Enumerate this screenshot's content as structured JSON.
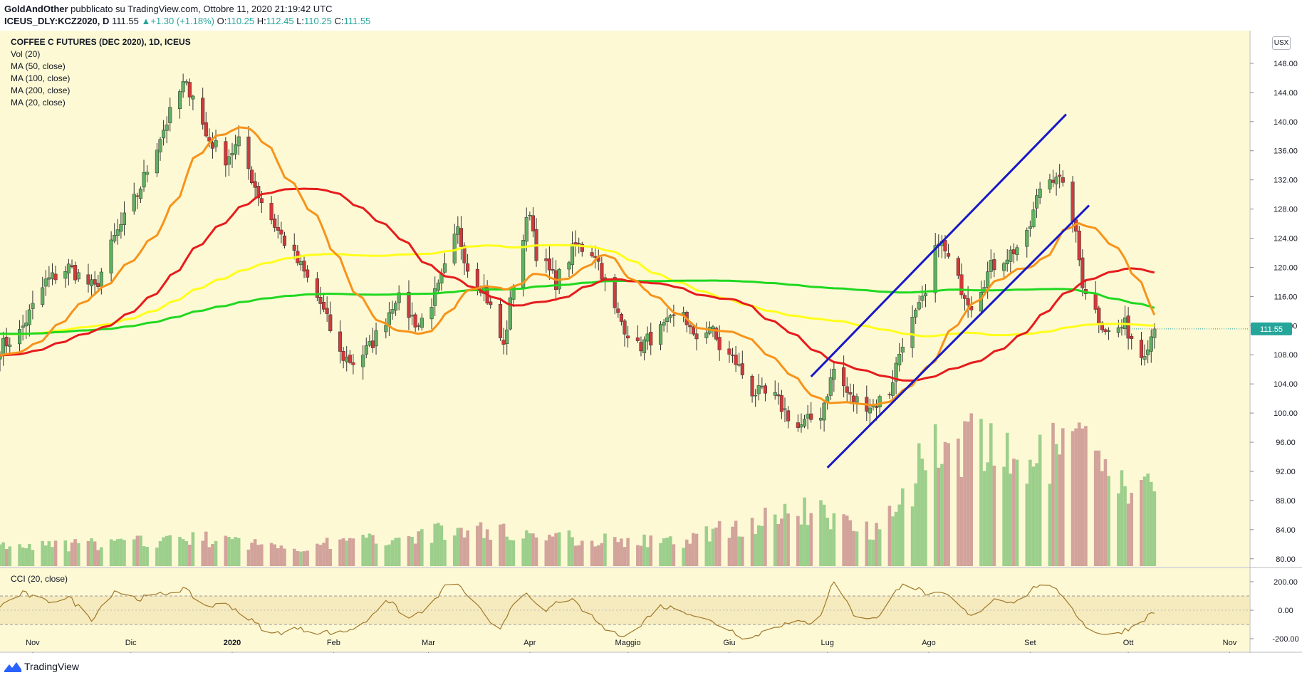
{
  "header": {
    "author": "GoldAndOther",
    "published_text": "pubblicato su TradingView.com, Ottobre 11, 2020 21:19:42 UTC",
    "symbol": "ICEUS_DLY:KCZ2020, D",
    "last": "111.55",
    "change_arrow": "▲",
    "change": "+1.30 (+1.18%)",
    "o_label": "O:",
    "o": "110.25",
    "h_label": "H:",
    "h": "112.45",
    "l_label": "L:",
    "l": "110.25",
    "c_label": "C:",
    "c": "111.55"
  },
  "legend": {
    "title": "COFFEE C FUTURES (DEC 2020), 1D, ICEUS",
    "vol": "Vol (20)",
    "ma50": "MA (50, close)",
    "ma100": "MA (100, close)",
    "ma200": "MA (200, close)",
    "ma20": "MA (20, close)",
    "cci": "CCI (20, close)"
  },
  "currency_badge": "USX",
  "price_label": "111.55",
  "footer": {
    "brand": "TradingView"
  },
  "colors": {
    "background": "#fdf9d5",
    "up": "#26a69a",
    "candle_up": "#60b060",
    "candle_down": "#d03a3a",
    "vol_up": "#9dcf8c",
    "vol_down": "#d2a39b",
    "ma20": "#f7931a",
    "ma50": "#e61c1c",
    "ma100": "#ffff1a",
    "ma200": "#20d820",
    "channel": "#1818c8",
    "cci": "#a0782a",
    "price_badge": "#26a69a"
  },
  "chart_data": {
    "type": "candlestick",
    "title": "COFFEE C FUTURES (DEC 2020), 1D, ICEUS",
    "y_ticks": [
      "80.00",
      "84.00",
      "88.00",
      "92.00",
      "96.00",
      "100.00",
      "104.00",
      "108.00",
      "112.00",
      "116.00",
      "120.00",
      "124.00",
      "128.00",
      "132.00",
      "136.00",
      "140.00",
      "144.00",
      "148.00"
    ],
    "ylim": [
      79,
      152
    ],
    "x_ticks": [
      "Nov",
      "Dic",
      "2020",
      "Feb",
      "Mar",
      "Apr",
      "Maggio",
      "Giu",
      "Lug",
      "Ago",
      "Set",
      "Ott",
      "Nov"
    ],
    "x_range": [
      "2019-10-22",
      "2020-11-07"
    ],
    "last_close": 111.55,
    "close_anchors": [
      [
        "2019-10-22",
        109
      ],
      [
        "2019-10-28",
        111
      ],
      [
        "2019-11-05",
        118
      ],
      [
        "2019-11-12",
        120
      ],
      [
        "2019-11-20",
        117
      ],
      [
        "2019-11-26",
        124
      ],
      [
        "2019-12-03",
        130
      ],
      [
        "2019-12-10",
        138
      ],
      [
        "2019-12-17",
        145
      ],
      [
        "2019-12-20",
        144
      ],
      [
        "2019-12-24",
        138
      ],
      [
        "2019-12-30",
        135
      ],
      [
        "2020-01-03",
        137
      ],
      [
        "2020-01-09",
        130
      ],
      [
        "2020-01-15",
        125
      ],
      [
        "2020-01-22",
        120
      ],
      [
        "2020-01-28",
        115
      ],
      [
        "2020-02-03",
        108
      ],
      [
        "2020-02-07",
        107
      ],
      [
        "2020-02-12",
        109
      ],
      [
        "2020-02-17",
        113
      ],
      [
        "2020-02-20",
        116
      ],
      [
        "2020-02-27",
        112
      ],
      [
        "2020-03-04",
        117
      ],
      [
        "2020-03-10",
        125
      ],
      [
        "2020-03-13",
        120
      ],
      [
        "2020-03-18",
        117
      ],
      [
        "2020-03-24",
        109
      ],
      [
        "2020-03-27",
        118
      ],
      [
        "2020-04-01",
        128
      ],
      [
        "2020-04-03",
        122
      ],
      [
        "2020-04-09",
        118
      ],
      [
        "2020-04-15",
        123
      ],
      [
        "2020-04-21",
        122
      ],
      [
        "2020-04-27",
        114
      ],
      [
        "2020-05-04",
        109
      ],
      [
        "2020-05-07",
        110
      ],
      [
        "2020-05-13",
        112
      ],
      [
        "2020-05-18",
        114
      ],
      [
        "2020-05-21",
        110
      ],
      [
        "2020-05-26",
        112
      ],
      [
        "2020-05-29",
        109
      ],
      [
        "2020-06-03",
        107
      ],
      [
        "2020-06-08",
        103
      ],
      [
        "2020-06-15",
        102
      ],
      [
        "2020-06-22",
        98
      ],
      [
        "2020-06-29",
        100
      ],
      [
        "2020-07-03",
        106
      ],
      [
        "2020-07-08",
        102
      ],
      [
        "2020-07-15",
        101
      ],
      [
        "2020-07-20",
        103
      ],
      [
        "2020-07-24",
        110
      ],
      [
        "2020-07-31",
        116
      ],
      [
        "2020-08-04",
        124
      ],
      [
        "2020-08-10",
        118
      ],
      [
        "2020-08-14",
        115
      ],
      [
        "2020-08-20",
        120
      ],
      [
        "2020-08-26",
        122
      ],
      [
        "2020-08-31",
        124
      ],
      [
        "2020-09-04",
        131
      ],
      [
        "2020-09-09",
        133
      ],
      [
        "2020-09-14",
        127
      ],
      [
        "2020-09-17",
        118
      ],
      [
        "2020-09-22",
        113
      ],
      [
        "2020-09-25",
        111
      ],
      [
        "2020-09-30",
        112
      ],
      [
        "2020-10-05",
        108
      ],
      [
        "2020-10-09",
        111.55
      ]
    ],
    "volume_anchors": [
      [
        "2019-10-22",
        2
      ],
      [
        "2019-11-30",
        2.5
      ],
      [
        "2019-12-20",
        3
      ],
      [
        "2020-01-20",
        2
      ],
      [
        "2020-02-15",
        3
      ],
      [
        "2020-03-15",
        4
      ],
      [
        "2020-04-15",
        3
      ],
      [
        "2020-05-15",
        2.5
      ],
      [
        "2020-06-05",
        4.5
      ],
      [
        "2020-06-25",
        6
      ],
      [
        "2020-07-15",
        4
      ],
      [
        "2020-07-25",
        8
      ],
      [
        "2020-08-04",
        14
      ],
      [
        "2020-08-20",
        12
      ],
      [
        "2020-09-05",
        11
      ],
      [
        "2020-09-14",
        14
      ],
      [
        "2020-09-25",
        9
      ],
      [
        "2020-10-09",
        8
      ]
    ],
    "volume_ylim": [
      0,
      20
    ],
    "cci_ticks": [
      "200.00",
      "0.00",
      "-200.00"
    ],
    "cci_ylim": [
      -280,
      270
    ],
    "cci_band": [
      -100,
      100
    ],
    "cci_anchors": [
      [
        "2019-10-22",
        30
      ],
      [
        "2019-10-29",
        120
      ],
      [
        "2019-11-05",
        60
      ],
      [
        "2019-11-12",
        90
      ],
      [
        "2019-11-19",
        -60
      ],
      [
        "2019-11-26",
        140
      ],
      [
        "2019-12-03",
        80
      ],
      [
        "2019-12-10",
        110
      ],
      [
        "2019-12-17",
        150
      ],
      [
        "2019-12-24",
        30
      ],
      [
        "2019-12-31",
        40
      ],
      [
        "2020-01-06",
        -60
      ],
      [
        "2020-01-13",
        -170
      ],
      [
        "2020-01-20",
        -130
      ],
      [
        "2020-01-27",
        -150
      ],
      [
        "2020-02-03",
        -160
      ],
      [
        "2020-02-10",
        -100
      ],
      [
        "2020-02-17",
        80
      ],
      [
        "2020-02-24",
        -60
      ],
      [
        "2020-03-02",
        40
      ],
      [
        "2020-03-08",
        220
      ],
      [
        "2020-03-15",
        60
      ],
      [
        "2020-03-22",
        -170
      ],
      [
        "2020-03-29",
        150
      ],
      [
        "2020-04-05",
        -20
      ],
      [
        "2020-04-12",
        100
      ],
      [
        "2020-04-19",
        -30
      ],
      [
        "2020-04-26",
        -170
      ],
      [
        "2020-05-03",
        -160
      ],
      [
        "2020-05-10",
        30
      ],
      [
        "2020-05-17",
        10
      ],
      [
        "2020-05-24",
        -60
      ],
      [
        "2020-05-31",
        -120
      ],
      [
        "2020-06-07",
        -210
      ],
      [
        "2020-06-14",
        -110
      ],
      [
        "2020-06-21",
        -90
      ],
      [
        "2020-06-28",
        -80
      ],
      [
        "2020-07-03",
        210
      ],
      [
        "2020-07-10",
        -60
      ],
      [
        "2020-07-17",
        -40
      ],
      [
        "2020-07-24",
        200
      ],
      [
        "2020-07-31",
        120
      ],
      [
        "2020-08-07",
        100
      ],
      [
        "2020-08-14",
        -50
      ],
      [
        "2020-08-21",
        80
      ],
      [
        "2020-08-28",
        60
      ],
      [
        "2020-09-04",
        190
      ],
      [
        "2020-09-11",
        110
      ],
      [
        "2020-09-18",
        -120
      ],
      [
        "2020-09-25",
        -180
      ],
      [
        "2020-10-02",
        -120
      ],
      [
        "2020-10-09",
        -10
      ]
    ],
    "channel": {
      "upper": [
        [
          "2020-06-26",
          105
        ],
        [
          "2020-09-12",
          141
        ]
      ],
      "lower": [
        [
          "2020-07-01",
          92.5
        ],
        [
          "2020-09-19",
          128.5
        ]
      ]
    },
    "moving_averages": [
      {
        "name": "MA (20, close)",
        "period": 20
      },
      {
        "name": "MA (50, close)",
        "period": 50
      },
      {
        "name": "MA (100, close)",
        "period": 100
      },
      {
        "name": "MA (200, close)",
        "period": 200
      }
    ],
    "grid": false,
    "legend": "top-left"
  }
}
